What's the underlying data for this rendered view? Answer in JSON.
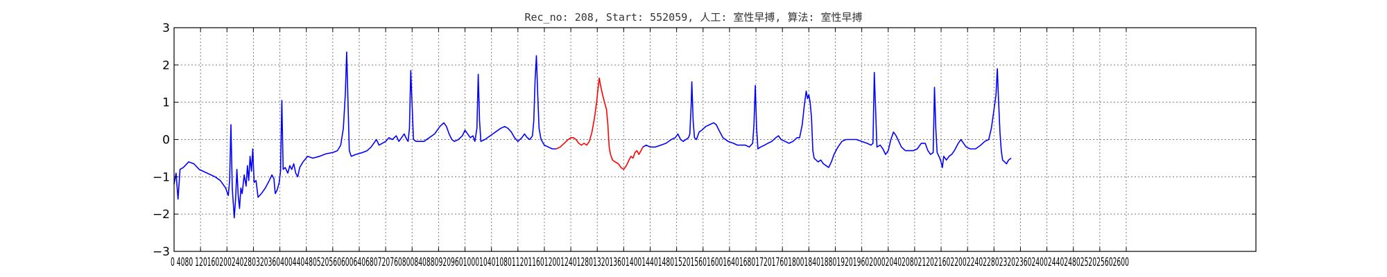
{
  "chart_data": {
    "type": "line",
    "title": "Rec_no: 208, Start: 552059, 人工: 室性早搏, 算法: 室性早搏",
    "xlabel": "",
    "ylabel": "",
    "xlim": [
      0,
      1440
    ],
    "ylim": [
      -3,
      3
    ],
    "xticks": [
      0,
      40,
      80,
      120,
      160,
      200,
      240,
      280,
      320,
      360,
      400,
      440,
      480,
      520,
      560,
      600,
      640,
      680,
      720,
      760,
      800,
      840,
      880,
      920,
      960,
      1000,
      1040,
      1080,
      1120,
      1160,
      1200,
      1240,
      1280,
      1320,
      1360,
      1400,
      1440
    ],
    "yticks": [
      -3,
      -2,
      -1,
      0,
      1,
      2,
      3
    ],
    "xtick_labels": "0 4080 12016020024028032036040044048052056060064068072076080084088092096010001040108011201160120012401280132013601400144014801520156016001640168017201760180018401880192019602000204020802120216022002240228023202360240024402480252025602600",
    "grid": true,
    "series": [
      {
        "color": "#0000ff",
        "points": [
          [
            0,
            -1.2
          ],
          [
            3,
            -0.9
          ],
          [
            6,
            -1.6
          ],
          [
            9,
            -0.8
          ],
          [
            14,
            -0.75
          ],
          [
            22,
            -0.6
          ],
          [
            30,
            -0.65
          ],
          [
            38,
            -0.8
          ],
          [
            50,
            -0.9
          ],
          [
            62,
            -1.0
          ],
          [
            70,
            -1.1
          ],
          [
            78,
            -1.3
          ],
          [
            82,
            -1.5
          ],
          [
            84,
            -1.1
          ],
          [
            86,
            0.4
          ],
          [
            88,
            -1.3
          ],
          [
            91,
            -2.1
          ],
          [
            93,
            -1.6
          ],
          [
            95,
            -0.8
          ],
          [
            97,
            -1.5
          ],
          [
            99,
            -1.85
          ],
          [
            101,
            -1.3
          ],
          [
            103,
            -1.45
          ],
          [
            106,
            -0.95
          ],
          [
            109,
            -1.25
          ],
          [
            111,
            -0.7
          ],
          [
            113,
            -1.1
          ],
          [
            115,
            -0.45
          ],
          [
            117,
            -0.85
          ],
          [
            119,
            -0.25
          ],
          [
            121,
            -1.15
          ],
          [
            124,
            -1.1
          ],
          [
            127,
            -1.55
          ],
          [
            132,
            -1.45
          ],
          [
            138,
            -1.3
          ],
          [
            144,
            -1.1
          ],
          [
            148,
            -0.95
          ],
          [
            151,
            -1.05
          ],
          [
            153,
            -1.45
          ],
          [
            156,
            -1.35
          ],
          [
            159,
            -1.15
          ],
          [
            161,
            -0.85
          ],
          [
            163,
            1.05
          ],
          [
            165,
            -0.8
          ],
          [
            168,
            -0.75
          ],
          [
            172,
            -0.9
          ],
          [
            175,
            -0.7
          ],
          [
            178,
            -0.8
          ],
          [
            181,
            -0.65
          ],
          [
            184,
            -0.9
          ],
          [
            187,
            -1.0
          ],
          [
            190,
            -0.75
          ],
          [
            195,
            -0.6
          ],
          [
            202,
            -0.45
          ],
          [
            210,
            -0.5
          ],
          [
            220,
            -0.45
          ],
          [
            230,
            -0.38
          ],
          [
            240,
            -0.35
          ],
          [
            247,
            -0.3
          ],
          [
            252,
            -0.15
          ],
          [
            256,
            0.3
          ],
          [
            259,
            1.2
          ],
          [
            261,
            2.35
          ],
          [
            263,
            1.0
          ],
          [
            265,
            -0.3
          ],
          [
            268,
            -0.45
          ],
          [
            275,
            -0.4
          ],
          [
            285,
            -0.35
          ],
          [
            292,
            -0.3
          ],
          [
            298,
            -0.2
          ],
          [
            302,
            -0.1
          ],
          [
            306,
            0.0
          ],
          [
            310,
            -0.15
          ],
          [
            315,
            -0.1
          ],
          [
            320,
            -0.05
          ],
          [
            325,
            0.05
          ],
          [
            330,
            0.0
          ],
          [
            336,
            0.1
          ],
          [
            340,
            -0.05
          ],
          [
            344,
            0.05
          ],
          [
            348,
            0.15
          ],
          [
            352,
            0.0
          ],
          [
            354,
            -0.05
          ],
          [
            356,
            0.3
          ],
          [
            358,
            1.85
          ],
          [
            360,
            0.9
          ],
          [
            362,
            0.0
          ],
          [
            366,
            -0.05
          ],
          [
            372,
            -0.05
          ],
          [
            378,
            -0.05
          ],
          [
            386,
            0.05
          ],
          [
            394,
            0.15
          ],
          [
            402,
            0.35
          ],
          [
            408,
            0.45
          ],
          [
            412,
            0.35
          ],
          [
            416,
            0.15
          ],
          [
            420,
            0.0
          ],
          [
            424,
            -0.05
          ],
          [
            430,
            0.0
          ],
          [
            436,
            0.1
          ],
          [
            440,
            0.25
          ],
          [
            444,
            0.15
          ],
          [
            448,
            0.05
          ],
          [
            452,
            0.1
          ],
          [
            455,
            -0.05
          ],
          [
            458,
            0.3
          ],
          [
            460,
            1.75
          ],
          [
            462,
            0.5
          ],
          [
            464,
            -0.05
          ],
          [
            470,
            0.0
          ],
          [
            478,
            0.1
          ],
          [
            486,
            0.2
          ],
          [
            494,
            0.3
          ],
          [
            500,
            0.35
          ],
          [
            505,
            0.3
          ],
          [
            510,
            0.2
          ],
          [
            515,
            0.05
          ],
          [
            520,
            -0.05
          ],
          [
            526,
            0.05
          ],
          [
            530,
            0.15
          ],
          [
            534,
            0.05
          ],
          [
            538,
            0.0
          ],
          [
            542,
            0.1
          ],
          [
            544,
            0.5
          ],
          [
            546,
            1.6
          ],
          [
            548,
            2.25
          ],
          [
            550,
            1.2
          ],
          [
            552,
            0.3
          ],
          [
            555,
            0.0
          ],
          [
            560,
            -0.15
          ],
          [
            566,
            -0.2
          ],
          [
            572,
            -0.25
          ],
          [
            578,
            -0.25
          ]
        ]
      },
      {
        "color": "#ff0000",
        "points": [
          [
            578,
            -0.25
          ],
          [
            584,
            -0.2
          ],
          [
            590,
            -0.1
          ],
          [
            596,
            0.0
          ],
          [
            600,
            0.05
          ],
          [
            604,
            0.05
          ],
          [
            608,
            0.0
          ],
          [
            612,
            -0.1
          ],
          [
            616,
            -0.15
          ],
          [
            620,
            -0.1
          ],
          [
            624,
            -0.15
          ],
          [
            628,
            -0.05
          ],
          [
            632,
            0.2
          ],
          [
            636,
            0.6
          ],
          [
            639,
            1.0
          ],
          [
            641,
            1.35
          ],
          [
            643,
            1.65
          ],
          [
            645,
            1.45
          ],
          [
            648,
            1.2
          ],
          [
            651,
            1.0
          ],
          [
            654,
            0.8
          ],
          [
            656,
            0.4
          ],
          [
            658,
            -0.2
          ],
          [
            660,
            -0.4
          ],
          [
            663,
            -0.55
          ],
          [
            667,
            -0.6
          ],
          [
            672,
            -0.65
          ],
          [
            676,
            -0.75
          ],
          [
            680,
            -0.8
          ],
          [
            684,
            -0.7
          ],
          [
            688,
            -0.55
          ],
          [
            691,
            -0.45
          ],
          [
            694,
            -0.5
          ],
          [
            697,
            -0.35
          ],
          [
            700,
            -0.3
          ],
          [
            703,
            -0.4
          ],
          [
            706,
            -0.3
          ],
          [
            709,
            -0.2
          ]
        ]
      },
      {
        "color": "#0000ff",
        "points": [
          [
            709,
            -0.2
          ],
          [
            714,
            -0.15
          ],
          [
            720,
            -0.2
          ],
          [
            728,
            -0.2
          ],
          [
            736,
            -0.15
          ],
          [
            744,
            -0.1
          ],
          [
            752,
            0.0
          ],
          [
            758,
            0.05
          ],
          [
            762,
            0.15
          ],
          [
            766,
            0.0
          ],
          [
            770,
            -0.05
          ],
          [
            774,
            0.0
          ],
          [
            778,
            0.05
          ],
          [
            780,
            0.15
          ],
          [
            782,
            0.9
          ],
          [
            783,
            1.55
          ],
          [
            785,
            0.5
          ],
          [
            787,
            0.05
          ],
          [
            790,
            0.0
          ],
          [
            794,
            0.2
          ],
          [
            798,
            0.25
          ],
          [
            804,
            0.35
          ],
          [
            810,
            0.4
          ],
          [
            816,
            0.45
          ],
          [
            820,
            0.4
          ],
          [
            824,
            0.25
          ],
          [
            830,
            0.05
          ],
          [
            838,
            -0.05
          ],
          [
            846,
            -0.1
          ],
          [
            852,
            -0.15
          ],
          [
            858,
            -0.15
          ],
          [
            864,
            -0.15
          ],
          [
            870,
            -0.2
          ],
          [
            875,
            -0.1
          ],
          [
            877,
            0.4
          ],
          [
            879,
            1.45
          ],
          [
            881,
            0.3
          ],
          [
            883,
            -0.25
          ],
          [
            887,
            -0.2
          ],
          [
            893,
            -0.15
          ],
          [
            898,
            -0.1
          ],
          [
            904,
            -0.05
          ],
          [
            910,
            0.05
          ],
          [
            914,
            0.1
          ],
          [
            918,
            0.0
          ],
          [
            924,
            -0.05
          ],
          [
            930,
            -0.1
          ],
          [
            936,
            -0.05
          ],
          [
            942,
            0.05
          ],
          [
            946,
            0.05
          ],
          [
            950,
            0.4
          ],
          [
            953,
            0.9
          ],
          [
            956,
            1.3
          ],
          [
            958,
            1.1
          ],
          [
            960,
            1.2
          ],
          [
            962,
            1.0
          ],
          [
            964,
            0.6
          ],
          [
            966,
            -0.3
          ],
          [
            968,
            -0.5
          ],
          [
            971,
            -0.55
          ],
          [
            974,
            -0.6
          ],
          [
            978,
            -0.55
          ],
          [
            982,
            -0.65
          ],
          [
            986,
            -0.7
          ],
          [
            990,
            -0.75
          ],
          [
            994,
            -0.6
          ],
          [
            998,
            -0.4
          ],
          [
            1004,
            -0.2
          ],
          [
            1010,
            -0.05
          ],
          [
            1016,
            0.0
          ],
          [
            1024,
            0.0
          ],
          [
            1032,
            0.0
          ],
          [
            1040,
            -0.05
          ],
          [
            1048,
            -0.1
          ],
          [
            1054,
            -0.15
          ],
          [
            1057,
            -0.1
          ],
          [
            1059,
            1.8
          ],
          [
            1061,
            0.8
          ],
          [
            1063,
            -0.2
          ],
          [
            1068,
            -0.15
          ],
          [
            1072,
            -0.25
          ],
          [
            1076,
            -0.4
          ],
          [
            1080,
            -0.3
          ],
          [
            1084,
            0.0
          ],
          [
            1088,
            0.2
          ],
          [
            1092,
            0.1
          ],
          [
            1096,
            -0.05
          ],
          [
            1100,
            -0.2
          ],
          [
            1106,
            -0.3
          ],
          [
            1112,
            -0.3
          ],
          [
            1118,
            -0.3
          ],
          [
            1124,
            -0.25
          ],
          [
            1130,
            -0.1
          ],
          [
            1136,
            -0.1
          ],
          [
            1140,
            -0.3
          ],
          [
            1144,
            -0.4
          ],
          [
            1148,
            -0.35
          ],
          [
            1150,
            1.4
          ],
          [
            1152,
            0.3
          ],
          [
            1154,
            -0.35
          ],
          [
            1158,
            -0.5
          ],
          [
            1160,
            -0.6
          ],
          [
            1162,
            -0.75
          ],
          [
            1164,
            -0.45
          ],
          [
            1168,
            -0.55
          ],
          [
            1172,
            -0.45
          ],
          [
            1176,
            -0.4
          ],
          [
            1180,
            -0.3
          ],
          [
            1186,
            -0.1
          ],
          [
            1190,
            0.0
          ],
          [
            1194,
            -0.1
          ],
          [
            1198,
            -0.2
          ],
          [
            1204,
            -0.25
          ],
          [
            1212,
            -0.25
          ],
          [
            1220,
            -0.15
          ],
          [
            1226,
            -0.05
          ],
          [
            1232,
            0.0
          ],
          [
            1236,
            0.3
          ],
          [
            1240,
            0.8
          ],
          [
            1243,
            1.2
          ],
          [
            1245,
            1.9
          ],
          [
            1247,
            1.0
          ],
          [
            1249,
            0.2
          ],
          [
            1251,
            -0.3
          ],
          [
            1253,
            -0.55
          ],
          [
            1256,
            -0.6
          ],
          [
            1259,
            -0.65
          ],
          [
            1262,
            -0.55
          ],
          [
            1266,
            -0.5
          ]
        ]
      }
    ]
  }
}
